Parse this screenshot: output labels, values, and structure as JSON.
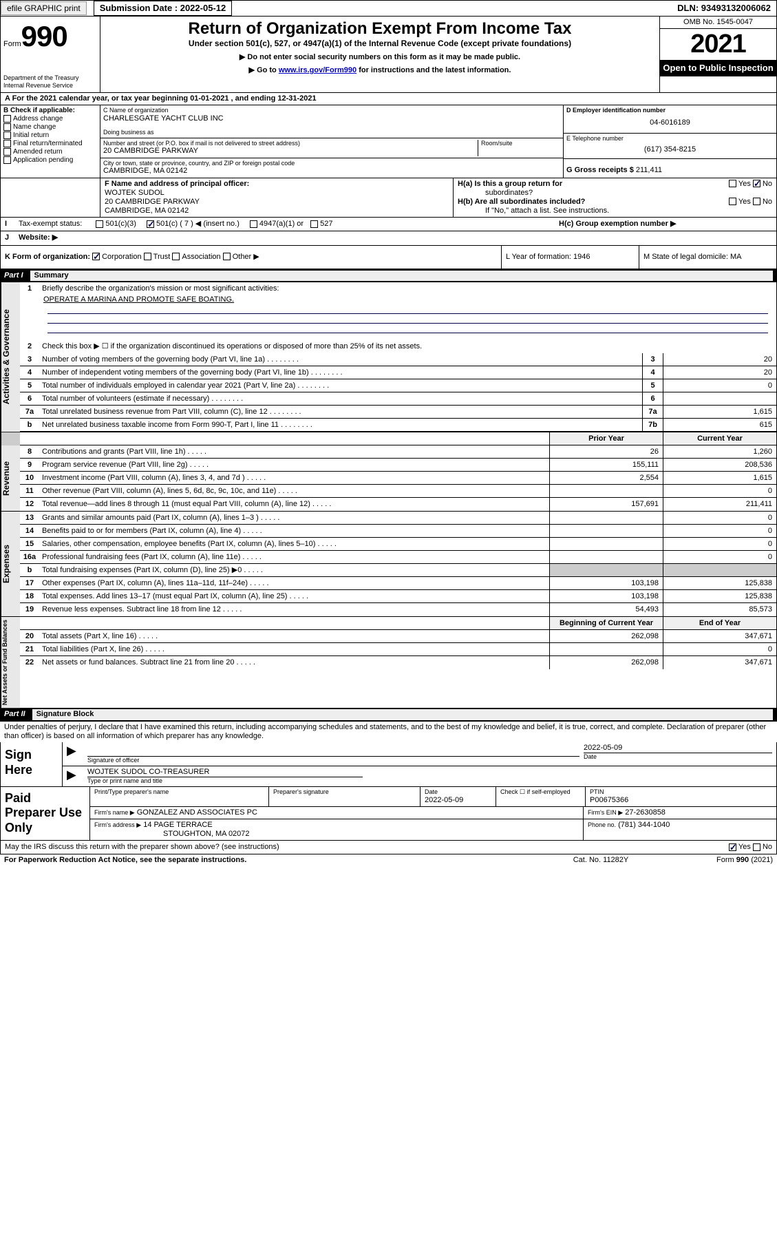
{
  "header": {
    "efile_label": "efile GRAPHIC print",
    "submission_label": "Submission Date : 2022-05-12",
    "dln_label": "DLN: 93493132006062"
  },
  "title_block": {
    "form_prefix": "Form",
    "form_number": "990",
    "dept": "Department of the Treasury",
    "irs": "Internal Revenue Service",
    "main_title": "Return of Organization Exempt From Income Tax",
    "subtitle": "Under section 501(c), 527, or 4947(a)(1) of the Internal Revenue Code (except private foundations)",
    "note1": "▶ Do not enter social security numbers on this form as it may be made public.",
    "note2_pre": "▶ Go to ",
    "note2_link": "www.irs.gov/Form990",
    "note2_post": " for instructions and the latest information.",
    "omb": "OMB No. 1545-0047",
    "year": "2021",
    "open_public": "Open to Public Inspection"
  },
  "row_a": {
    "text": "A For the 2021 calendar year, or tax year beginning 01-01-2021    , and ending 12-31-2021"
  },
  "col_b": {
    "header": "B Check if applicable:",
    "items": [
      "Address change",
      "Name change",
      "Initial return",
      "Final return/terminated",
      "Amended return",
      "Application pending"
    ]
  },
  "col_c": {
    "name_label": "C Name of organization",
    "name": "CHARLESGATE YACHT CLUB INC",
    "dba_label": "Doing business as",
    "dba": "",
    "street_label": "Number and street (or P.O. box if mail is not delivered to street address)",
    "room_label": "Room/suite",
    "street": "20 CAMBRIDGE PARKWAY",
    "city_label": "City or town, state or province, country, and ZIP or foreign postal code",
    "city": "CAMBRIDGE, MA  02142"
  },
  "col_de": {
    "d_label": "D Employer identification number",
    "ein": "04-6016189",
    "e_label": "E Telephone number",
    "phone": "(617) 354-8215",
    "g_label": "G Gross receipts $",
    "gross": "211,411"
  },
  "row_f": {
    "label": "F  Name and address of principal officer:",
    "name": "WOJTEK SUDOL",
    "addr1": "20 CAMBRIDGE PARKWAY",
    "addr2": "CAMBRIDGE, MA  02142"
  },
  "row_h": {
    "ha_label": "H(a)  Is this a group return for",
    "ha_label2": "subordinates?",
    "yes": "Yes",
    "no": "No",
    "hb_label": "H(b)  Are all subordinates included?",
    "hb_note": "If \"No,\" attach a list. See instructions.",
    "hc_label": "H(c)  Group exemption number ▶"
  },
  "row_i": {
    "label": "Tax-exempt status:",
    "c3": "501(c)(3)",
    "c": "501(c) ( 7 ) ◀ (insert no.)",
    "a1": "4947(a)(1) or",
    "527": "527"
  },
  "row_j": {
    "label": "Website: ▶",
    "val": ""
  },
  "row_k": {
    "label": "K Form of organization:",
    "corp": "Corporation",
    "trust": "Trust",
    "assoc": "Association",
    "other": "Other ▶"
  },
  "row_l": {
    "label": "L Year of formation: 1946"
  },
  "row_m": {
    "label": "M State of legal domicile: MA"
  },
  "part1": {
    "label": "Part I",
    "title": "Summary"
  },
  "governance": {
    "label": "Activities & Governance",
    "rows": [
      {
        "n": "1",
        "text": "Briefly describe the organization's mission or most significant activities:"
      },
      {
        "n": "",
        "text": "OPERATE A MARINA AND PROMOTE SAFE BOATING."
      }
    ],
    "line2": "Check this box ▶ ☐  if the organization discontinued its operations or disposed of more than 25% of its net assets.",
    "lines": [
      {
        "n": "3",
        "text": "Number of voting members of the governing body (Part VI, line 1a)",
        "box": "3",
        "val": "20"
      },
      {
        "n": "4",
        "text": "Number of independent voting members of the governing body (Part VI, line 1b)",
        "box": "4",
        "val": "20"
      },
      {
        "n": "5",
        "text": "Total number of individuals employed in calendar year 2021 (Part V, line 2a)",
        "box": "5",
        "val": "0"
      },
      {
        "n": "6",
        "text": "Total number of volunteers (estimate if necessary)",
        "box": "6",
        "val": ""
      },
      {
        "n": "7a",
        "text": "Total unrelated business revenue from Part VIII, column (C), line 12",
        "box": "7a",
        "val": "1,615"
      },
      {
        "n": "b",
        "text": "Net unrelated business taxable income from Form 990-T, Part I, line 11",
        "box": "7b",
        "val": "615"
      }
    ]
  },
  "two_col_header": {
    "prior": "Prior Year",
    "current": "Current Year"
  },
  "revenue": {
    "label": "Revenue",
    "lines": [
      {
        "n": "8",
        "text": "Contributions and grants (Part VIII, line 1h)",
        "prior": "26",
        "current": "1,260"
      },
      {
        "n": "9",
        "text": "Program service revenue (Part VIII, line 2g)",
        "prior": "155,111",
        "current": "208,536"
      },
      {
        "n": "10",
        "text": "Investment income (Part VIII, column (A), lines 3, 4, and 7d )",
        "prior": "2,554",
        "current": "1,615"
      },
      {
        "n": "11",
        "text": "Other revenue (Part VIII, column (A), lines 5, 6d, 8c, 9c, 10c, and 11e)",
        "prior": "",
        "current": "0"
      },
      {
        "n": "12",
        "text": "Total revenue—add lines 8 through 11 (must equal Part VIII, column (A), line 12)",
        "prior": "157,691",
        "current": "211,411"
      }
    ]
  },
  "expenses": {
    "label": "Expenses",
    "lines": [
      {
        "n": "13",
        "text": "Grants and similar amounts paid (Part IX, column (A), lines 1–3 )",
        "prior": "",
        "current": "0"
      },
      {
        "n": "14",
        "text": "Benefits paid to or for members (Part IX, column (A), line 4)",
        "prior": "",
        "current": "0"
      },
      {
        "n": "15",
        "text": "Salaries, other compensation, employee benefits (Part IX, column (A), lines 5–10)",
        "prior": "",
        "current": "0"
      },
      {
        "n": "16a",
        "text": "Professional fundraising fees (Part IX, column (A), line 11e)",
        "prior": "",
        "current": "0"
      },
      {
        "n": "b",
        "text": "Total fundraising expenses (Part IX, column (D), line 25) ▶0",
        "prior": "grey",
        "current": "grey"
      },
      {
        "n": "17",
        "text": "Other expenses (Part IX, column (A), lines 11a–11d, 11f–24e)",
        "prior": "103,198",
        "current": "125,838"
      },
      {
        "n": "18",
        "text": "Total expenses. Add lines 13–17 (must equal Part IX, column (A), line 25)",
        "prior": "103,198",
        "current": "125,838"
      },
      {
        "n": "19",
        "text": "Revenue less expenses. Subtract line 18 from line 12",
        "prior": "54,493",
        "current": "85,573"
      }
    ]
  },
  "netassets": {
    "label": "Net Assets or Fund Balances",
    "header": {
      "begin": "Beginning of Current Year",
      "end": "End of Year"
    },
    "lines": [
      {
        "n": "20",
        "text": "Total assets (Part X, line 16)",
        "prior": "262,098",
        "current": "347,671"
      },
      {
        "n": "21",
        "text": "Total liabilities (Part X, line 26)",
        "prior": "",
        "current": "0"
      },
      {
        "n": "22",
        "text": "Net assets or fund balances. Subtract line 21 from line 20",
        "prior": "262,098",
        "current": "347,671"
      }
    ]
  },
  "part2": {
    "label": "Part II",
    "title": "Signature Block"
  },
  "penalties": "Under penalties of perjury, I declare that I have examined this return, including accompanying schedules and statements, and to the best of my knowledge and belief, it is true, correct, and complete. Declaration of preparer (other than officer) is based on all information of which preparer has any knowledge.",
  "sign_here": {
    "label": "Sign Here",
    "sig_label": "Signature of officer",
    "date_label": "Date",
    "date": "2022-05-09",
    "name": "WOJTEK SUDOL CO-TREASURER",
    "name_label": "Type or print name and title"
  },
  "preparer": {
    "label": "Paid Preparer Use Only",
    "h_name": "Print/Type preparer's name",
    "h_sig": "Preparer's signature",
    "h_date": "Date",
    "h_check": "Check ☐ if self-employed",
    "h_ptin": "PTIN",
    "date": "2022-05-09",
    "ptin": "P00675366",
    "firm_name_label": "Firm's name    ▶",
    "firm_name": "GONZALEZ AND ASSOCIATES PC",
    "firm_ein_label": "Firm's EIN ▶",
    "firm_ein": "27-2630858",
    "firm_addr_label": "Firm's address ▶",
    "firm_addr1": "14 PAGE TERRACE",
    "firm_addr2": "STOUGHTON, MA  02072",
    "phone_label": "Phone no.",
    "phone": "(781) 344-1040"
  },
  "may_irs": {
    "text": "May the IRS discuss this return with the preparer shown above? (see instructions)",
    "yes": "Yes",
    "no": "No"
  },
  "footer": {
    "left": "For Paperwork Reduction Act Notice, see the separate instructions.",
    "mid": "Cat. No. 11282Y",
    "right_pre": "Form ",
    "right_bold": "990",
    "right_post": " (2021)"
  }
}
